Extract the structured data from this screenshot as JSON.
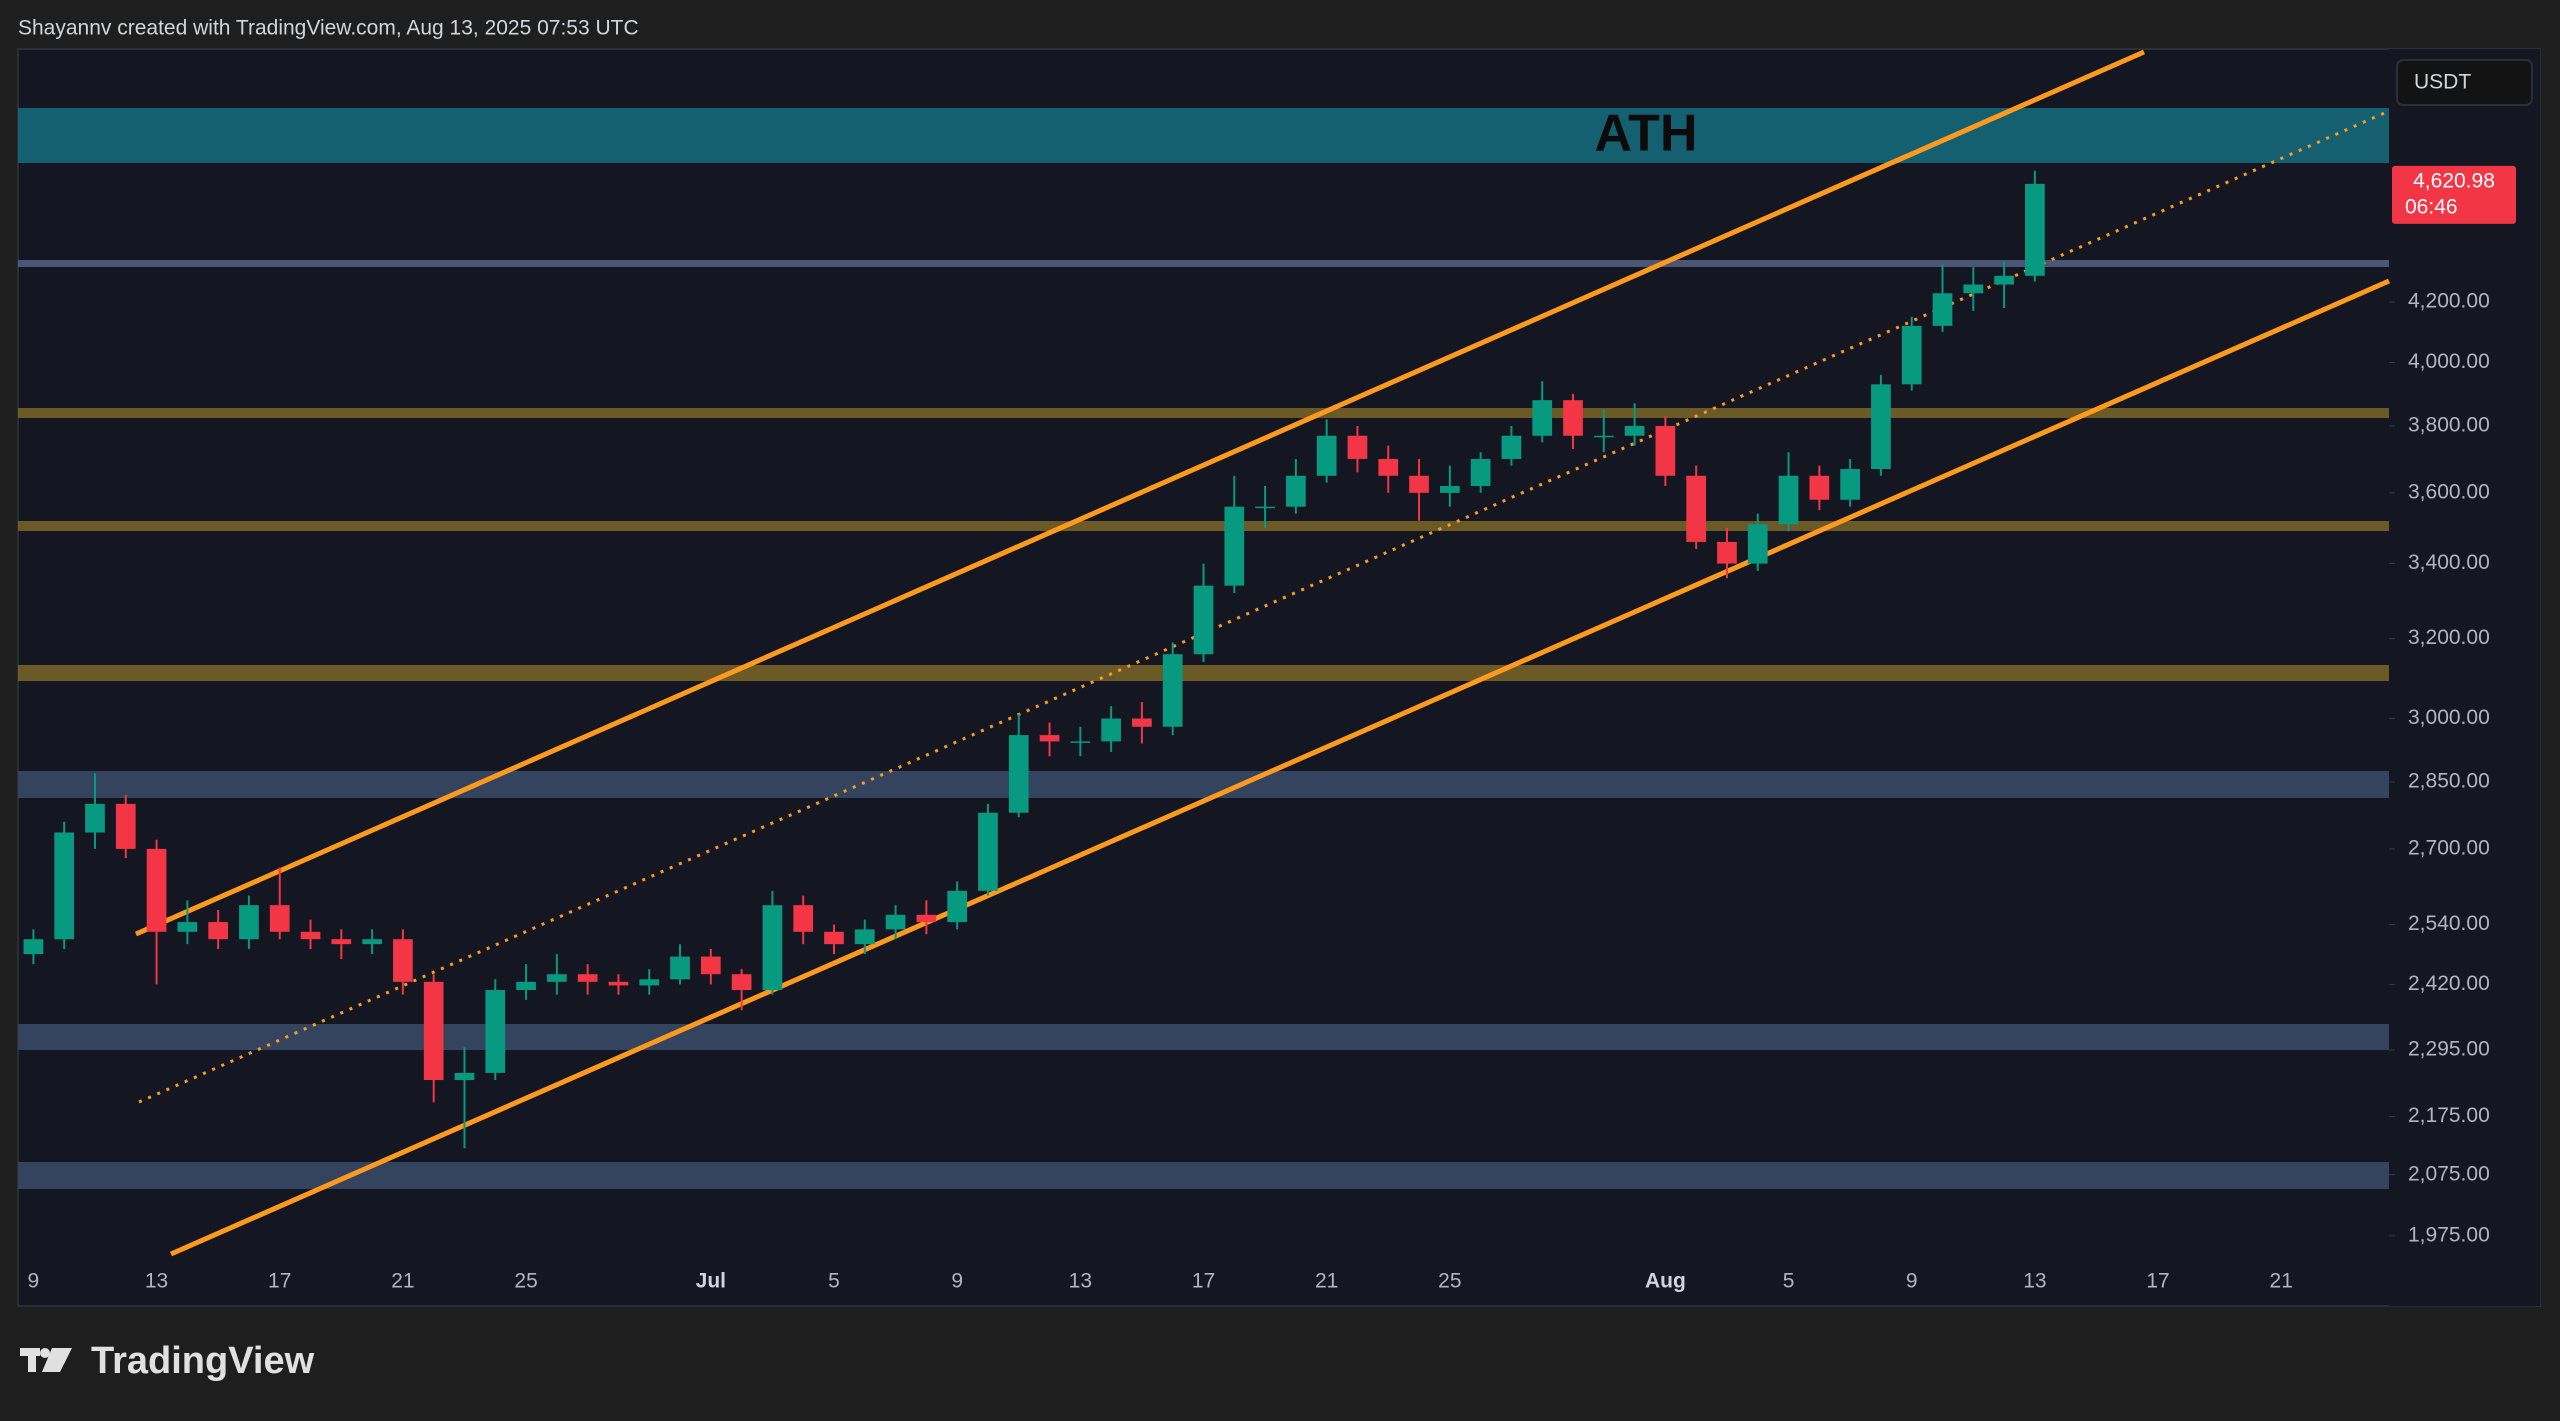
{
  "header": {
    "credit": "Shayannv created with TradingView.com, Aug 13, 2025 07:53 UTC"
  },
  "chart_data": {
    "type": "candlestick",
    "currency": "USDT",
    "annotation": "ATH",
    "log_scale": true,
    "up_color": "#089981",
    "down_color": "#f23645",
    "last_price": {
      "value": 4620.98,
      "label": "4,620.98",
      "countdown": "06:46"
    },
    "categories": [
      "9",
      null,
      null,
      null,
      "13",
      null,
      null,
      null,
      "17",
      null,
      null,
      null,
      "21",
      null,
      null,
      null,
      "25",
      null,
      null,
      null,
      null,
      null,
      "Jul",
      null,
      null,
      null,
      "5",
      null,
      null,
      null,
      "9",
      null,
      null,
      null,
      "13",
      null,
      null,
      null,
      "17",
      null,
      null,
      null,
      "21",
      null,
      null,
      null,
      "25",
      null,
      null,
      null,
      null,
      null,
      null,
      "Aug",
      null,
      null,
      null,
      "5",
      null,
      null,
      null,
      "9",
      null,
      null,
      null,
      "13",
      null,
      null,
      null,
      "17",
      null,
      null,
      null,
      "21",
      null,
      null,
      null
    ],
    "series": {
      "open": [
        2480,
        2510,
        2736,
        2800,
        2700,
        2525,
        2545,
        2510,
        2580,
        2525,
        2510,
        2500,
        2510,
        2425,
        2240,
        2253,
        2409,
        2425,
        2440,
        2425,
        2418,
        2430,
        2475,
        2440,
        2409,
        2580,
        2525,
        2500,
        2530,
        2560,
        2545,
        2610,
        2780,
        2960,
        2945,
        2945,
        3000,
        2980,
        3160,
        3340,
        3560,
        3560,
        3650,
        3770,
        3700,
        3650,
        3600,
        3620,
        3700,
        3770,
        3880,
        3770,
        3770,
        3800,
        3650,
        3460,
        3400,
        3510,
        3650,
        3580,
        3670,
        3930,
        4120,
        4230,
        4260,
        4290,
        null,
        null,
        null,
        null,
        null,
        null,
        null,
        null,
        null,
        null,
        null
      ],
      "high": [
        2530,
        2760,
        2870,
        2820,
        2720,
        2590,
        2570,
        2600,
        2660,
        2550,
        2530,
        2530,
        2530,
        2440,
        2300,
        2430,
        2460,
        2480,
        2460,
        2440,
        2450,
        2500,
        2490,
        2450,
        2610,
        2600,
        2540,
        2550,
        2580,
        2590,
        2630,
        2800,
        3010,
        2990,
        2980,
        3030,
        3040,
        3190,
        3400,
        3650,
        3620,
        3700,
        3820,
        3800,
        3740,
        3700,
        3680,
        3720,
        3800,
        3940,
        3900,
        3850,
        3870,
        3830,
        3680,
        3500,
        3540,
        3720,
        3680,
        3700,
        3960,
        4150,
        4330,
        4320,
        4340,
        4670,
        null,
        null,
        null,
        null,
        null,
        null,
        null,
        null,
        null,
        null,
        null
      ],
      "low": [
        2460,
        2490,
        2700,
        2680,
        2420,
        2500,
        2490,
        2490,
        2510,
        2490,
        2470,
        2480,
        2400,
        2200,
        2120,
        2240,
        2390,
        2400,
        2400,
        2400,
        2400,
        2420,
        2420,
        2370,
        2400,
        2500,
        2480,
        2480,
        2510,
        2520,
        2530,
        2600,
        2770,
        2910,
        2910,
        2920,
        2940,
        2960,
        3140,
        3320,
        3500,
        3540,
        3630,
        3660,
        3600,
        3520,
        3560,
        3600,
        3680,
        3750,
        3730,
        3720,
        3740,
        3620,
        3440,
        3360,
        3380,
        3490,
        3550,
        3560,
        3650,
        3910,
        4100,
        4170,
        4180,
        4270,
        null,
        null,
        null,
        null,
        null,
        null,
        null,
        null,
        null,
        null,
        null
      ],
      "close": [
        2510,
        2736,
        2800,
        2700,
        2525,
        2545,
        2510,
        2580,
        2525,
        2510,
        2500,
        2510,
        2425,
        2240,
        2253,
        2409,
        2425,
        2440,
        2425,
        2418,
        2430,
        2475,
        2440,
        2409,
        2580,
        2525,
        2500,
        2530,
        2560,
        2545,
        2610,
        2780,
        2960,
        2945,
        2945,
        3000,
        2980,
        3160,
        3340,
        3560,
        3560,
        3650,
        3770,
        3700,
        3650,
        3600,
        3620,
        3700,
        3770,
        3880,
        3770,
        3770,
        3800,
        3650,
        3460,
        3400,
        3510,
        3650,
        3580,
        3670,
        3930,
        4120,
        4230,
        4260,
        4290,
        4620.98,
        null,
        null,
        null,
        null,
        null,
        null,
        null,
        null,
        null,
        null,
        null
      ]
    },
    "ylim": [
      1940,
      5153
    ],
    "yticks": [
      {
        "value": 1975,
        "label": "1,975.00"
      },
      {
        "value": 2075,
        "label": "2,075.00"
      },
      {
        "value": 2175,
        "label": "2,175.00"
      },
      {
        "value": 2295,
        "label": "2,295.00"
      },
      {
        "value": 2420,
        "label": "2,420.00"
      },
      {
        "value": 2540,
        "label": "2,540.00"
      },
      {
        "value": 2700,
        "label": "2,700.00"
      },
      {
        "value": 2850,
        "label": "2,850.00"
      },
      {
        "value": 3000,
        "label": "3,000.00"
      },
      {
        "value": 3200,
        "label": "3,200.00"
      },
      {
        "value": 3400,
        "label": "3,400.00"
      },
      {
        "value": 3600,
        "label": "3,600.00"
      },
      {
        "value": 3800,
        "label": "3,800.00"
      },
      {
        "value": 4000,
        "label": "4,000.00"
      },
      {
        "value": 4200,
        "label": "4,200.00"
      }
    ],
    "grid": false
  },
  "footer": {
    "brand": "TradingView"
  }
}
